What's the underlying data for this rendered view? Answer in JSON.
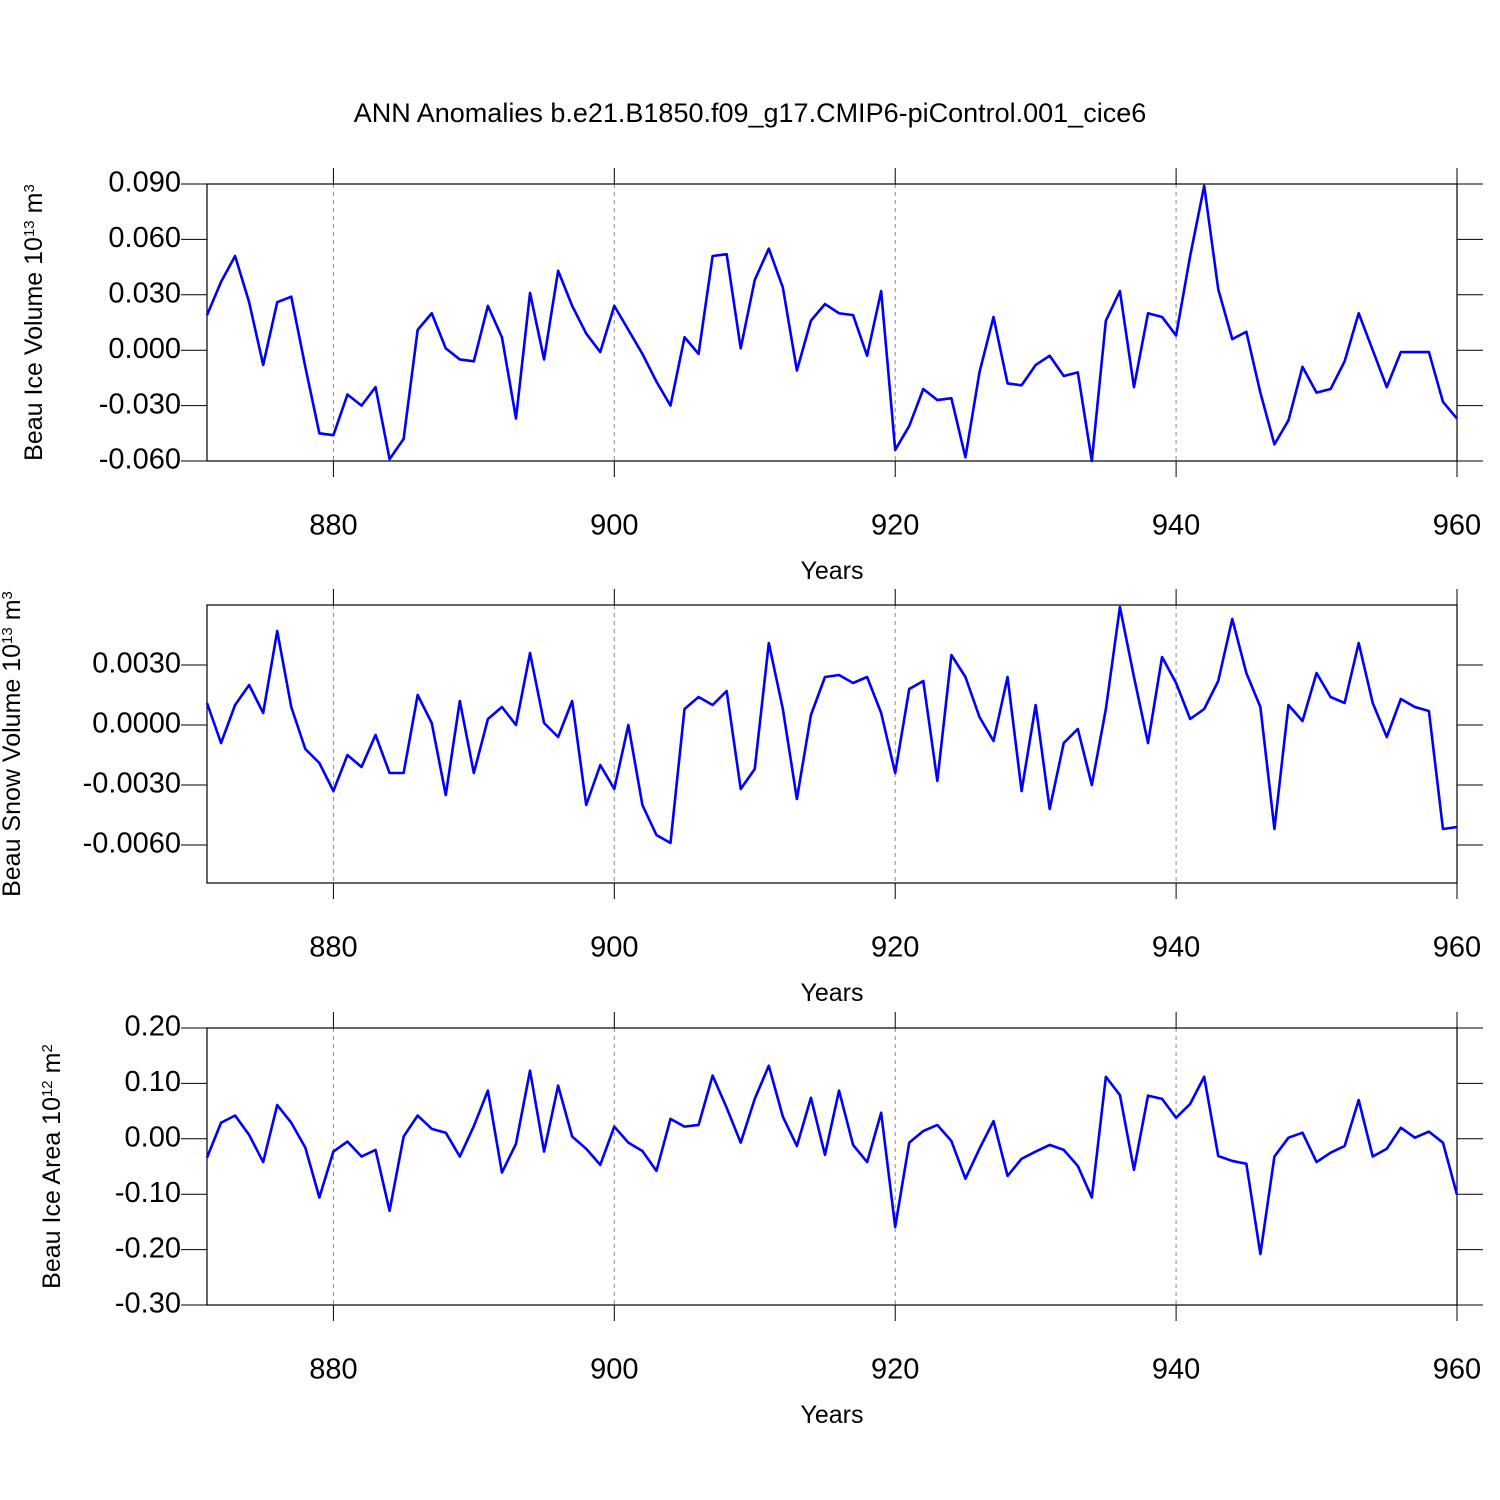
{
  "chart_data": [
    {
      "type": "line",
      "title": "ANN Anomalies b.e21.B1850.f09_g17.CMIP6-piControl.001_cice6",
      "ylabel": [
        "Beau Ice Volume 10",
        "13",
        "m",
        "3"
      ],
      "xlabel": "Years",
      "color": "#0000ff",
      "x": [
        871,
        872,
        873,
        874,
        875,
        876,
        877,
        878,
        879,
        880,
        881,
        882,
        883,
        884,
        885,
        886,
        887,
        888,
        889,
        890,
        891,
        892,
        893,
        894,
        895,
        896,
        897,
        898,
        899,
        900,
        901,
        902,
        903,
        904,
        905,
        906,
        907,
        908,
        909,
        910,
        911,
        912,
        913,
        914,
        915,
        916,
        917,
        918,
        919,
        920,
        921,
        922,
        923,
        924,
        925,
        926,
        927,
        928,
        929,
        930,
        931,
        932,
        933,
        934,
        935,
        936,
        937,
        938,
        939,
        940,
        941,
        942,
        943,
        944,
        945,
        946,
        947,
        948,
        949,
        950,
        951,
        952,
        953,
        954,
        955,
        956,
        957,
        958,
        959,
        960
      ],
      "values": [
        0.019,
        0.037,
        0.051,
        0.026,
        -0.008,
        0.026,
        0.029,
        -0.009,
        -0.045,
        -0.046,
        -0.024,
        -0.03,
        -0.02,
        -0.059,
        -0.048,
        0.011,
        0.02,
        0.001,
        -0.005,
        -0.006,
        0.024,
        0.007,
        -0.037,
        0.031,
        -0.005,
        0.043,
        0.024,
        0.009,
        -0.001,
        0.024,
        0.011,
        -0.002,
        -0.017,
        -0.03,
        0.007,
        -0.002,
        0.051,
        0.052,
        0.001,
        0.038,
        0.055,
        0.034,
        -0.011,
        0.016,
        0.025,
        0.02,
        0.019,
        -0.003,
        0.032,
        -0.054,
        -0.041,
        -0.021,
        -0.027,
        -0.026,
        -0.058,
        -0.012,
        0.018,
        -0.018,
        -0.019,
        -0.008,
        -0.003,
        -0.014,
        -0.012,
        -0.06,
        0.016,
        0.032,
        -0.02,
        0.02,
        0.018,
        0.008,
        0.051,
        0.089,
        0.033,
        0.006,
        0.01,
        -0.023,
        -0.051,
        -0.038,
        -0.009,
        -0.023,
        -0.021,
        -0.006,
        0.02,
        0.0,
        -0.02,
        -0.001,
        -0.001,
        -0.001,
        -0.028,
        -0.037
      ],
      "xlim": [
        871,
        960
      ],
      "xticks": [
        880,
        900,
        920,
        940,
        960
      ],
      "ylim": [
        -0.06,
        0.09
      ],
      "yticks": [
        {
          "value": 0.09,
          "label": "0.090"
        },
        {
          "value": 0.06,
          "label": "0.060"
        },
        {
          "value": 0.03,
          "label": "0.030"
        },
        {
          "value": 0,
          "label": "0.000"
        },
        {
          "value": -0.03,
          "label": "-0.030"
        },
        {
          "value": -0.06,
          "label": "-0.060"
        }
      ],
      "xgrid": true
    },
    {
      "type": "line",
      "ylabel": [
        "Beau Snow Volume 10",
        "13",
        "m",
        "3"
      ],
      "xlabel": "Years",
      "color": "#0000ff",
      "x": [
        871,
        872,
        873,
        874,
        875,
        876,
        877,
        878,
        879,
        880,
        881,
        882,
        883,
        884,
        885,
        886,
        887,
        888,
        889,
        890,
        891,
        892,
        893,
        894,
        895,
        896,
        897,
        898,
        899,
        900,
        901,
        902,
        903,
        904,
        905,
        906,
        907,
        908,
        909,
        910,
        911,
        912,
        913,
        914,
        915,
        916,
        917,
        918,
        919,
        920,
        921,
        922,
        923,
        924,
        925,
        926,
        927,
        928,
        929,
        930,
        931,
        932,
        933,
        934,
        935,
        936,
        937,
        938,
        939,
        940,
        941,
        942,
        943,
        944,
        945,
        946,
        947,
        948,
        949,
        950,
        951,
        952,
        953,
        954,
        955,
        956,
        957,
        958,
        959,
        960
      ],
      "values": [
        0.0011,
        -0.0009,
        0.001,
        0.002,
        0.0006,
        0.0047,
        0.0009,
        -0.0012,
        -0.0019,
        -0.0033,
        -0.0015,
        -0.0021,
        -0.0005,
        -0.0024,
        -0.0024,
        0.0015,
        0.0001,
        -0.0035,
        0.0012,
        -0.0024,
        0.0003,
        0.0009,
        0.0,
        0.0036,
        0.0001,
        -0.0006,
        0.0012,
        -0.004,
        -0.002,
        -0.0032,
        0.0,
        -0.004,
        -0.0055,
        -0.0059,
        0.0008,
        0.0014,
        0.001,
        0.0017,
        -0.0032,
        -0.0022,
        0.0041,
        0.0008,
        -0.0037,
        0.0005,
        0.0024,
        0.0025,
        0.0021,
        0.0024,
        0.0006,
        -0.0024,
        0.0018,
        0.0022,
        -0.0028,
        0.0035,
        0.0024,
        0.0004,
        -0.0008,
        0.0024,
        -0.0033,
        0.001,
        -0.0042,
        -0.0009,
        -0.0002,
        -0.003,
        0.0008,
        0.0059,
        0.0024,
        -0.0009,
        0.0034,
        0.0021,
        0.0003,
        0.0008,
        0.0022,
        0.0053,
        0.0026,
        0.0009,
        -0.0052,
        0.001,
        0.0002,
        0.0026,
        0.0014,
        0.0011,
        0.0041,
        0.0011,
        -0.0006,
        0.0013,
        0.0009,
        0.0007,
        -0.0052,
        -0.0051
      ],
      "xlim": [
        871,
        960
      ],
      "xticks": [
        880,
        900,
        920,
        940,
        960
      ],
      "ylim": [
        -0.0079,
        0.006
      ],
      "yticks": [
        {
          "value": 0.003,
          "label": "0.0030"
        },
        {
          "value": 0,
          "label": "0.0000"
        },
        {
          "value": -0.003,
          "label": "-0.0030"
        },
        {
          "value": -0.006,
          "label": "-0.0060"
        }
      ],
      "xgrid": true
    },
    {
      "type": "line",
      "ylabel": [
        "Beau Ice Area 10",
        "12",
        "m",
        "2"
      ],
      "xlabel": "Years",
      "color": "#0000ff",
      "x": [
        871,
        872,
        873,
        874,
        875,
        876,
        877,
        878,
        879,
        880,
        881,
        882,
        883,
        884,
        885,
        886,
        887,
        888,
        889,
        890,
        891,
        892,
        893,
        894,
        895,
        896,
        897,
        898,
        899,
        900,
        901,
        902,
        903,
        904,
        905,
        906,
        907,
        908,
        909,
        910,
        911,
        912,
        913,
        914,
        915,
        916,
        917,
        918,
        919,
        920,
        921,
        922,
        923,
        924,
        925,
        926,
        927,
        928,
        929,
        930,
        931,
        932,
        933,
        934,
        935,
        936,
        937,
        938,
        939,
        940,
        941,
        942,
        943,
        944,
        945,
        946,
        947,
        948,
        949,
        950,
        951,
        952,
        953,
        954,
        955,
        956,
        957,
        958,
        959,
        960
      ],
      "values": [
        -0.034,
        0.029,
        0.042,
        0.007,
        -0.042,
        0.061,
        0.029,
        -0.016,
        -0.106,
        -0.023,
        -0.005,
        -0.032,
        -0.02,
        -0.13,
        0.004,
        0.042,
        0.018,
        0.011,
        -0.032,
        0.023,
        0.087,
        -0.061,
        -0.009,
        0.123,
        -0.023,
        0.096,
        0.004,
        -0.018,
        -0.047,
        0.022,
        -0.007,
        -0.022,
        -0.058,
        0.036,
        0.022,
        0.025,
        0.114,
        0.056,
        -0.007,
        0.072,
        0.132,
        0.04,
        -0.013,
        0.074,
        -0.029,
        0.087,
        -0.011,
        -0.042,
        0.047,
        -0.159,
        -0.007,
        0.014,
        0.025,
        -0.004,
        -0.072,
        -0.018,
        0.032,
        -0.067,
        -0.036,
        -0.023,
        -0.011,
        -0.02,
        -0.049,
        -0.106,
        0.112,
        0.079,
        -0.056,
        0.078,
        0.072,
        0.038,
        0.063,
        0.112,
        -0.031,
        -0.04,
        -0.045,
        -0.208,
        -0.032,
        0.002,
        0.011,
        -0.042,
        -0.025,
        -0.013,
        0.07,
        -0.032,
        -0.018,
        0.02,
        0.002,
        0.013,
        -0.007,
        -0.101
      ],
      "xlim": [
        871,
        960
      ],
      "xticks": [
        880,
        900,
        920,
        940,
        960
      ],
      "ylim": [
        -0.3,
        0.2
      ],
      "yticks": [
        {
          "value": 0.2,
          "label": "0.20"
        },
        {
          "value": 0.1,
          "label": "0.10"
        },
        {
          "value": 0,
          "label": "0.00"
        },
        {
          "value": -0.1,
          "label": "-0.10"
        },
        {
          "value": -0.2,
          "label": "-0.20"
        },
        {
          "value": -0.3,
          "label": "-0.30"
        }
      ],
      "xgrid": true
    }
  ]
}
